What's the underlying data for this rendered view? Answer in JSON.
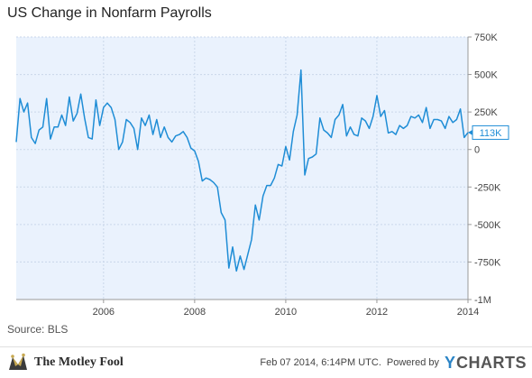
{
  "header": {
    "title": "US Change in Nonfarm Payrolls"
  },
  "footer": {
    "source": "Source: BLS",
    "brand_left": "The Motley Fool",
    "timestamp": "Feb 07 2014, 6:14PM UTC.",
    "powered_by": "Powered by",
    "brand_right_mark": "Y",
    "brand_right_text": "CHARTS"
  },
  "colors": {
    "line": "#1f8dd6",
    "plot_background": "#eaf2fd",
    "last_value_border": "#1f8dd6"
  },
  "chart_data": {
    "type": "line",
    "title": "US Change in Nonfarm Payrolls",
    "xlabel": "",
    "ylabel": "",
    "x_ticks": [
      "2006",
      "2008",
      "2010",
      "2012",
      "2014"
    ],
    "y_ticks": [
      "750K",
      "500K",
      "250K",
      "0",
      "-250K",
      "-500K",
      "-750K",
      "-1M"
    ],
    "ylim": [
      -1000,
      750
    ],
    "y_unit": "thousands",
    "grid": true,
    "legend": "none",
    "last_value_label": "113K",
    "series": [
      {
        "x": [
          "2004-02",
          "2004-03",
          "2004-04",
          "2004-05",
          "2004-06",
          "2004-07",
          "2004-08",
          "2004-09",
          "2004-10",
          "2004-11",
          "2004-12",
          "2005-01",
          "2005-02",
          "2005-03",
          "2005-04",
          "2005-05",
          "2005-06",
          "2005-07",
          "2005-08",
          "2005-09",
          "2005-10",
          "2005-11",
          "2005-12",
          "2006-01",
          "2006-02",
          "2006-03",
          "2006-04",
          "2006-05",
          "2006-06",
          "2006-07",
          "2006-08",
          "2006-09",
          "2006-10",
          "2006-11",
          "2006-12",
          "2007-01",
          "2007-02",
          "2007-03",
          "2007-04",
          "2007-05",
          "2007-06",
          "2007-07",
          "2007-08",
          "2007-09",
          "2007-10",
          "2007-11",
          "2007-12",
          "2008-01",
          "2008-02",
          "2008-03",
          "2008-04",
          "2008-05",
          "2008-06",
          "2008-07",
          "2008-08",
          "2008-09",
          "2008-10",
          "2008-11",
          "2008-12",
          "2009-01",
          "2009-02",
          "2009-03",
          "2009-04",
          "2009-05",
          "2009-06",
          "2009-07",
          "2009-08",
          "2009-09",
          "2009-10",
          "2009-11",
          "2009-12",
          "2010-01",
          "2010-02",
          "2010-03",
          "2010-04",
          "2010-05",
          "2010-06",
          "2010-07",
          "2010-08",
          "2010-09",
          "2010-10",
          "2010-11",
          "2010-12",
          "2011-01",
          "2011-02",
          "2011-03",
          "2011-04",
          "2011-05",
          "2011-06",
          "2011-07",
          "2011-08",
          "2011-09",
          "2011-10",
          "2011-11",
          "2011-12",
          "2012-01",
          "2012-02",
          "2012-03",
          "2012-04",
          "2012-05",
          "2012-06",
          "2012-07",
          "2012-08",
          "2012-09",
          "2012-10",
          "2012-11",
          "2012-12",
          "2013-01",
          "2013-02",
          "2013-03",
          "2013-04",
          "2013-05",
          "2013-06",
          "2013-07",
          "2013-08",
          "2013-09",
          "2013-10",
          "2013-11",
          "2013-12",
          "2014-01"
        ],
        "values": [
          50,
          340,
          250,
          310,
          80,
          40,
          130,
          150,
          340,
          70,
          150,
          150,
          230,
          160,
          350,
          190,
          240,
          370,
          210,
          80,
          70,
          330,
          160,
          280,
          310,
          280,
          200,
          0,
          50,
          200,
          180,
          140,
          0,
          210,
          160,
          230,
          100,
          200,
          80,
          150,
          80,
          50,
          90,
          100,
          120,
          80,
          10,
          -10,
          -80,
          -210,
          -190,
          -200,
          -220,
          -250,
          -420,
          -470,
          -790,
          -650,
          -810,
          -710,
          -800,
          -700,
          -600,
          -370,
          -470,
          -310,
          -240,
          -240,
          -190,
          -100,
          -110,
          20,
          -70,
          120,
          230,
          530,
          -170,
          -60,
          -50,
          -30,
          210,
          130,
          110,
          80,
          200,
          230,
          300,
          90,
          150,
          100,
          90,
          210,
          190,
          140,
          220,
          360,
          220,
          260,
          110,
          120,
          100,
          160,
          140,
          160,
          220,
          210,
          230,
          180,
          280,
          140,
          200,
          200,
          190,
          140,
          220,
          180,
          200,
          270,
          80,
          113
        ]
      }
    ]
  }
}
